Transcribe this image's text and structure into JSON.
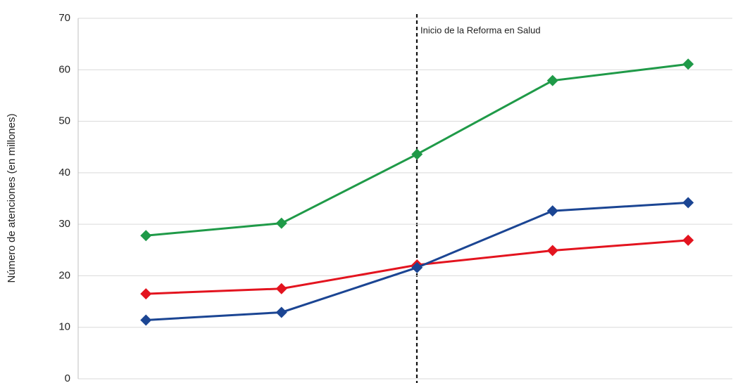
{
  "chart_data": {
    "type": "line",
    "y_label": "Número de atenciones (en millones)",
    "annotation": "Inicio de la Reforma en Salud",
    "categories": [
      null,
      null,
      null,
      null,
      null
    ],
    "series": [
      {
        "color": "#1f9a48",
        "values": [
          27.8,
          30.2,
          43.6,
          57.9,
          61.1
        ]
      },
      {
        "color": "#e3141f",
        "values": [
          16.5,
          17.5,
          22.1,
          24.9,
          26.9
        ]
      },
      {
        "color": "#1b4593",
        "values": [
          11.4,
          12.9,
          21.6,
          32.6,
          34.2
        ]
      }
    ],
    "ylim": [
      0,
      70
    ],
    "yticks": [
      0,
      10,
      20,
      30,
      40,
      50,
      60,
      70
    ],
    "grid": true
  }
}
